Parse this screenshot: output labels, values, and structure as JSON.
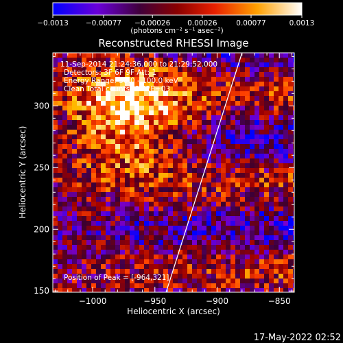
{
  "chart_data": {
    "type": "heatmap",
    "title": "Reconstructed RHESSI Image",
    "xlabel": "Heliocentric X (arcsec)",
    "ylabel": "Heliocentric Y (arcsec)",
    "xlim": [
      -1032,
      -838
    ],
    "ylim": [
      149,
      343
    ],
    "x_ticks": [
      -1000,
      -950,
      -900,
      -850
    ],
    "x_tick_labels": [
      "−1000",
      "−950",
      "−900",
      "−850"
    ],
    "y_ticks": [
      150,
      200,
      250,
      300
    ],
    "y_tick_labels": [
      "150",
      "200",
      "250",
      "300"
    ],
    "colorbar": {
      "min": -0.0013,
      "max": 0.0013,
      "ticks": [
        -0.0013,
        -0.00077,
        -0.00026,
        0.00026,
        0.00077,
        0.0013
      ],
      "tick_labels": [
        "−0.0013",
        "−0.00077",
        "−0.00026",
        "0.00026",
        "0.00077",
        "0.0013"
      ],
      "unit_label": "(photons cm⁻² s⁻¹ asec⁻²)",
      "colors": [
        "#0000ff",
        "#7a00cc",
        "#3a0030",
        "#a00000",
        "#ff4000",
        "#ffc000",
        "#ffffff"
      ]
    },
    "peak_x": -964,
    "peak_y": 321,
    "limb_x_at_ylim": [
      -941,
      -880
    ],
    "grid": false
  },
  "overlay": {
    "time_range": "11-Sep-2014 21:24:36.000 to 21:29:52.000",
    "detectors": "Detectors: 3F 6F 9F  Att: 1",
    "energy": "Energy Range: 50.0 - 100.0 keV",
    "clean": "Clean     Total counts: 6.52E+03",
    "peak_text": "Position of Peak = [-964,321]"
  },
  "timestamp": "17-May-2022 02:52"
}
